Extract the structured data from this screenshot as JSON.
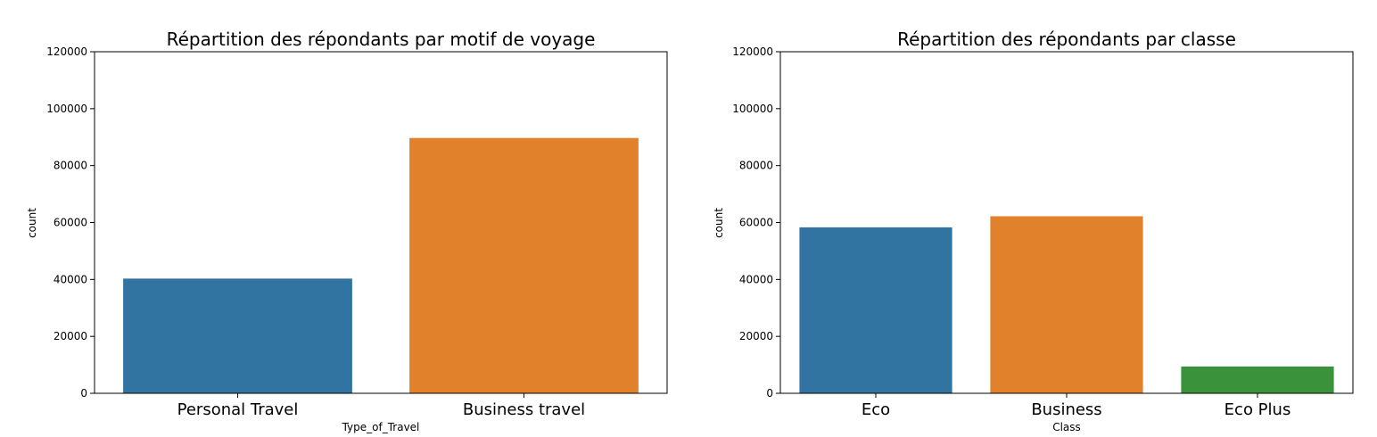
{
  "chart_data": [
    {
      "type": "bar",
      "title": "Répartition des répondants par motif de voyage",
      "xlabel": "Type_of_Travel",
      "ylabel": "count",
      "categories": [
        "Personal Travel",
        "Business travel"
      ],
      "values": [
        40300,
        89700
      ],
      "colors": [
        "#3274a1",
        "#e1812c"
      ],
      "ylim": [
        0,
        120000
      ],
      "yticks": [
        "0",
        "20000",
        "40000",
        "60000",
        "80000",
        "100000",
        "120000"
      ],
      "grid": false
    },
    {
      "type": "bar",
      "title": "Répartition des répondants par classe",
      "xlabel": "Class",
      "ylabel": "count",
      "categories": [
        "Eco",
        "Business",
        "Eco Plus"
      ],
      "values": [
        58300,
        62200,
        9400
      ],
      "colors": [
        "#3274a1",
        "#e1812c",
        "#3a923a"
      ],
      "ylim": [
        0,
        120000
      ],
      "yticks": [
        "0",
        "20000",
        "40000",
        "60000",
        "80000",
        "100000",
        "120000"
      ],
      "grid": false
    }
  ]
}
